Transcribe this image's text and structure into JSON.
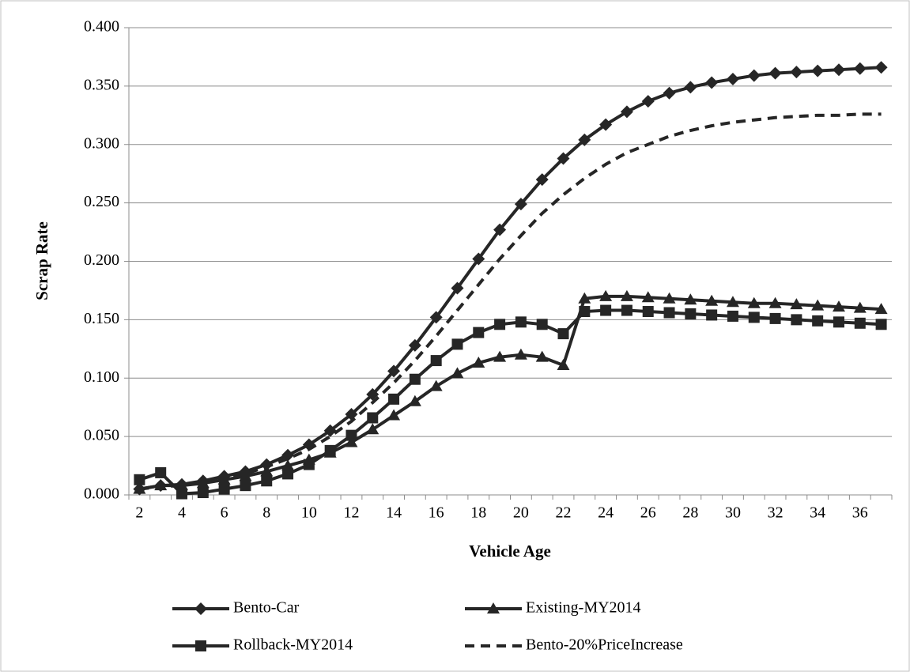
{
  "chart_data": {
    "type": "line",
    "x_label": "Vehicle Age",
    "y_label": "Scrap Rate",
    "categories": [
      "2",
      null,
      "4",
      null,
      "6",
      null,
      "8",
      null,
      "10",
      null,
      "12",
      null,
      "14",
      null,
      "16",
      null,
      "18",
      null,
      "20",
      null,
      "22",
      null,
      "24",
      null,
      "26",
      null,
      "28",
      null,
      "30",
      null,
      "32",
      null,
      "34",
      null,
      "36",
      null
    ],
    "ylim": [
      0,
      0.4
    ],
    "yticks": [
      {
        "value": 0,
        "label": "0.000"
      },
      {
        "value": 0.05,
        "label": "0.050"
      },
      {
        "value": 0.1,
        "label": "0.100"
      },
      {
        "value": 0.15,
        "label": "0.150"
      },
      {
        "value": 0.2,
        "label": "0.200"
      },
      {
        "value": 0.25,
        "label": "0.250"
      },
      {
        "value": 0.3,
        "label": "0.300"
      },
      {
        "value": 0.35,
        "label": "0.350"
      },
      {
        "value": 0.4,
        "label": "0.400"
      }
    ],
    "grid": true,
    "legend": "bottom",
    "series": [
      {
        "name": "Bento-Car",
        "color": "#262626",
        "marker": "diamond",
        "dash": "solid",
        "values": [
          0.005,
          0.008,
          0.009,
          0.012,
          0.016,
          0.02,
          0.026,
          0.034,
          0.043,
          0.055,
          0.069,
          0.086,
          0.106,
          0.128,
          0.152,
          0.177,
          0.202,
          0.227,
          0.249,
          0.27,
          0.288,
          0.304,
          0.317,
          0.328,
          0.337,
          0.344,
          0.349,
          0.353,
          0.356,
          0.359,
          0.361,
          0.362,
          0.363,
          0.364,
          0.365,
          0.366
        ]
      },
      {
        "name": "Existing-MY2014",
        "color": "#262626",
        "marker": "triangle",
        "dash": "solid",
        "values": [
          0.005,
          0.008,
          0.008,
          0.01,
          0.013,
          0.016,
          0.02,
          0.025,
          0.03,
          0.036,
          0.045,
          0.056,
          0.068,
          0.08,
          0.093,
          0.104,
          0.113,
          0.118,
          0.12,
          0.118,
          0.111,
          0.168,
          0.17,
          0.17,
          0.169,
          0.168,
          0.167,
          0.166,
          0.165,
          0.164,
          0.164,
          0.163,
          0.162,
          0.161,
          0.16,
          0.159
        ]
      },
      {
        "name": "Rollback-MY2014",
        "color": "#262626",
        "marker": "square",
        "dash": "solid",
        "values": [
          0.013,
          0.019,
          0.001,
          0.002,
          0.005,
          0.008,
          0.012,
          0.018,
          0.026,
          0.038,
          0.051,
          0.066,
          0.082,
          0.099,
          0.115,
          0.129,
          0.139,
          0.146,
          0.148,
          0.146,
          0.138,
          0.157,
          0.158,
          0.158,
          0.157,
          0.156,
          0.155,
          0.154,
          0.153,
          0.152,
          0.151,
          0.15,
          0.149,
          0.148,
          0.147,
          0.146
        ]
      },
      {
        "name": "Bento-20%PriceIncrease",
        "color": "#262626",
        "marker": "none",
        "dash": "dashed",
        "values": [
          0.005,
          0.007,
          0.008,
          0.011,
          0.014,
          0.018,
          0.024,
          0.031,
          0.039,
          0.05,
          0.063,
          0.079,
          0.096,
          0.115,
          0.136,
          0.158,
          0.18,
          0.202,
          0.222,
          0.241,
          0.257,
          0.271,
          0.283,
          0.293,
          0.3,
          0.307,
          0.312,
          0.316,
          0.319,
          0.321,
          0.323,
          0.324,
          0.325,
          0.325,
          0.326,
          0.326
        ]
      }
    ]
  }
}
